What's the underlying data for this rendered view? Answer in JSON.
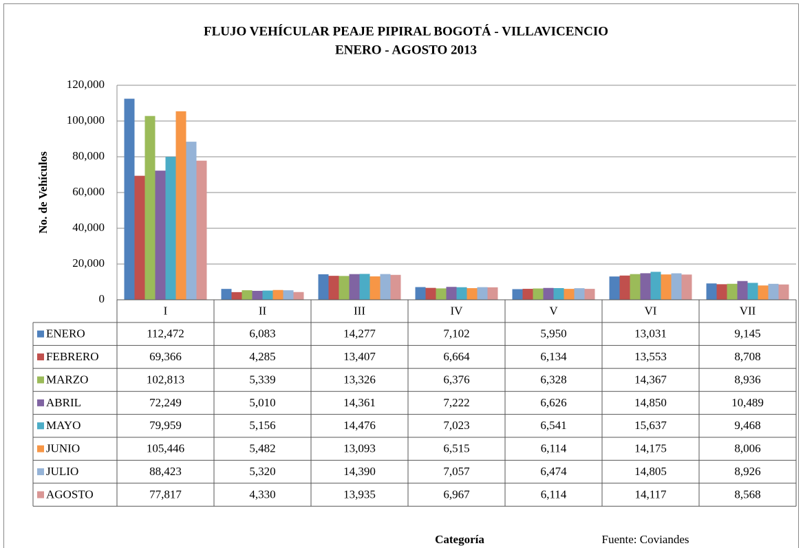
{
  "chart_data": {
    "type": "bar",
    "title": "FLUJO VEHÍCULAR PEAJE PIPIRAL BOGOTÁ - VILLAVICENCIO",
    "subtitle": "ENERO - AGOSTO 2013",
    "x_label": "Categoría",
    "y_label": "No. de Vehículos",
    "source": "Fuente: Coviandes",
    "categories": [
      "I",
      "II",
      "III",
      "IV",
      "V",
      "VI",
      "VII"
    ],
    "ylim": [
      0,
      120000
    ],
    "yticks": [
      0,
      {
        "value": 20000,
        "label": "20,000"
      },
      {
        "value": 40000,
        "label": "40,000"
      },
      {
        "value": 60000,
        "label": "60,000"
      },
      {
        "value": 80000,
        "label": "80,000"
      },
      {
        "value": 100000,
        "label": "100,000"
      },
      {
        "value": 120000,
        "label": "120,000"
      }
    ],
    "grid": true,
    "series": [
      {
        "name": "ENERO",
        "color": "#4f81bd",
        "values": [
          112472,
          6083,
          14277,
          7102,
          5950,
          13031,
          9145
        ],
        "value_labels": [
          "112,472",
          "6,083",
          "14,277",
          "7,102",
          "5,950",
          "13,031",
          "9,145"
        ]
      },
      {
        "name": "FEBRERO",
        "color": "#c0504d",
        "values": [
          69366,
          4285,
          13407,
          6664,
          6134,
          13553,
          8708
        ],
        "value_labels": [
          "69,366",
          "4,285",
          "13,407",
          "6,664",
          "6,134",
          "13,553",
          "8,708"
        ]
      },
      {
        "name": "MARZO",
        "color": "#9bbb59",
        "values": [
          102813,
          5339,
          13326,
          6376,
          6328,
          14367,
          8936
        ],
        "value_labels": [
          "102,813",
          "5,339",
          "13,326",
          "6,376",
          "6,328",
          "14,367",
          "8,936"
        ]
      },
      {
        "name": "ABRIL",
        "color": "#8064a2",
        "values": [
          72249,
          5010,
          14361,
          7222,
          6626,
          14850,
          10489
        ],
        "value_labels": [
          "72,249",
          "5,010",
          "14,361",
          "7,222",
          "6,626",
          "14,850",
          "10,489"
        ]
      },
      {
        "name": "MAYO",
        "color": "#4bacc6",
        "values": [
          79959,
          5156,
          14476,
          7023,
          6541,
          15637,
          9468
        ],
        "value_labels": [
          "79,959",
          "5,156",
          "14,476",
          "7,023",
          "6,541",
          "15,637",
          "9,468"
        ]
      },
      {
        "name": "JUNIO",
        "color": "#f79646",
        "values": [
          105446,
          5482,
          13093,
          6515,
          6114,
          14175,
          8006
        ],
        "value_labels": [
          "105,446",
          "5,482",
          "13,093",
          "6,515",
          "6,114",
          "14,175",
          "8,006"
        ]
      },
      {
        "name": "JULIO",
        "color": "#95b3d7",
        "values": [
          88423,
          5320,
          14390,
          7057,
          6474,
          14805,
          8926
        ],
        "value_labels": [
          "88,423",
          "5,320",
          "14,390",
          "7,057",
          "6,474",
          "14,805",
          "8,926"
        ]
      },
      {
        "name": "AGOSTO",
        "color": "#d99694",
        "values": [
          77817,
          4330,
          13935,
          6967,
          6114,
          14117,
          8568
        ],
        "value_labels": [
          "77,817",
          "4,330",
          "13,935",
          "6,967",
          "6,114",
          "14,117",
          "8,568"
        ]
      }
    ]
  }
}
